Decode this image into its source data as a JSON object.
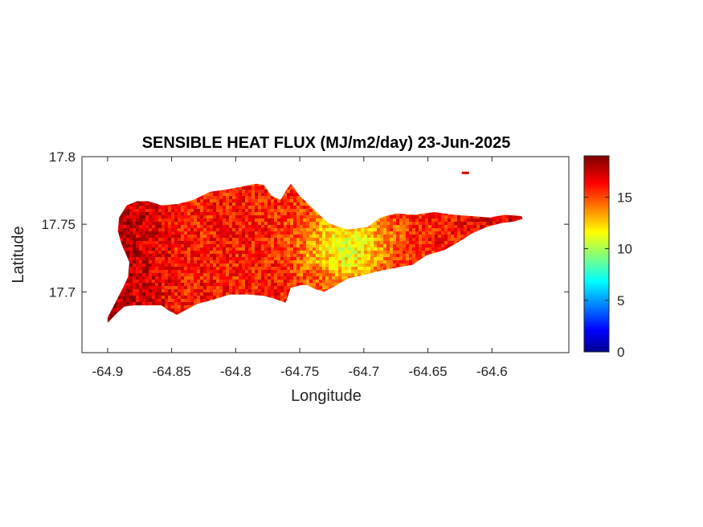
{
  "chart_data": {
    "type": "heatmap",
    "title": "SENSIBLE HEAT FLUX (MJ/m2/day) 23-Jun-2025",
    "xlabel": "Longitude",
    "ylabel": "Latitude",
    "xlim": [
      -64.92,
      -64.54
    ],
    "ylim": [
      17.655,
      17.8
    ],
    "x_ticks": [
      -64.9,
      -64.85,
      -64.8,
      -64.75,
      -64.7,
      -64.65,
      -64.6
    ],
    "x_tick_labels": [
      "-64.9",
      "-64.85",
      "-64.8",
      "-64.75",
      "-64.7",
      "-64.65",
      "-64.6"
    ],
    "y_ticks": [
      17.7,
      17.75,
      17.8
    ],
    "y_tick_labels": [
      "17.7",
      "17.75",
      "17.8"
    ],
    "grid": false,
    "colormap": "jet",
    "colorbar": {
      "position": "right",
      "range": [
        0,
        19
      ],
      "ticks": [
        0,
        5,
        10,
        15
      ],
      "tick_labels": [
        "0",
        "5",
        "10",
        "15"
      ]
    },
    "island_outline": [
      [
        -64.9,
        17.677
      ],
      [
        -64.893,
        17.684
      ],
      [
        -64.887,
        17.689
      ],
      [
        -64.88,
        17.69
      ],
      [
        -64.858,
        17.69
      ],
      [
        -64.852,
        17.686
      ],
      [
        -64.846,
        17.683
      ],
      [
        -64.84,
        17.686
      ],
      [
        -64.83,
        17.691
      ],
      [
        -64.818,
        17.694
      ],
      [
        -64.805,
        17.698
      ],
      [
        -64.79,
        17.698
      ],
      [
        -64.778,
        17.697
      ],
      [
        -64.77,
        17.695
      ],
      [
        -64.761,
        17.692
      ],
      [
        -64.757,
        17.703
      ],
      [
        -64.749,
        17.705
      ],
      [
        -64.744,
        17.705
      ],
      [
        -64.738,
        17.702
      ],
      [
        -64.731,
        17.7
      ],
      [
        -64.723,
        17.704
      ],
      [
        -64.712,
        17.71
      ],
      [
        -64.702,
        17.712
      ],
      [
        -64.69,
        17.715
      ],
      [
        -64.674,
        17.718
      ],
      [
        -64.662,
        17.72
      ],
      [
        -64.651,
        17.727
      ],
      [
        -64.637,
        17.731
      ],
      [
        -64.624,
        17.738
      ],
      [
        -64.616,
        17.743
      ],
      [
        -64.604,
        17.748
      ],
      [
        -64.592,
        17.751
      ],
      [
        -64.583,
        17.752
      ],
      [
        -64.576,
        17.754
      ],
      [
        -64.577,
        17.756
      ],
      [
        -64.59,
        17.757
      ],
      [
        -64.602,
        17.755
      ],
      [
        -64.616,
        17.756
      ],
      [
        -64.63,
        17.757
      ],
      [
        -64.645,
        17.759
      ],
      [
        -64.66,
        17.757
      ],
      [
        -64.675,
        17.758
      ],
      [
        -64.687,
        17.755
      ],
      [
        -64.697,
        17.748
      ],
      [
        -64.713,
        17.746
      ],
      [
        -64.728,
        17.751
      ],
      [
        -64.739,
        17.761
      ],
      [
        -64.75,
        17.771
      ],
      [
        -64.757,
        17.78
      ],
      [
        -64.76,
        17.776
      ],
      [
        -64.765,
        17.768
      ],
      [
        -64.772,
        17.771
      ],
      [
        -64.778,
        17.779
      ],
      [
        -64.784,
        17.78
      ],
      [
        -64.805,
        17.776
      ],
      [
        -64.82,
        17.774
      ],
      [
        -64.833,
        17.768
      ],
      [
        -64.845,
        17.765
      ],
      [
        -64.858,
        17.764
      ],
      [
        -64.868,
        17.767
      ],
      [
        -64.877,
        17.767
      ],
      [
        -64.885,
        17.764
      ],
      [
        -64.891,
        17.755
      ],
      [
        -64.892,
        17.745
      ],
      [
        -64.889,
        17.735
      ],
      [
        -64.883,
        17.722
      ],
      [
        -64.884,
        17.711
      ],
      [
        -64.888,
        17.703
      ],
      [
        -64.894,
        17.692
      ],
      [
        -64.9,
        17.681
      ]
    ],
    "islet": {
      "lon": -64.621,
      "lat": 17.788,
      "value": 17.5
    },
    "value_field": {
      "base": 16.2,
      "west_edge_peak": 18.5,
      "cool_center": {
        "lon": -64.715,
        "lat": 17.735,
        "value": 11.5
      },
      "min_value": 9.5
    }
  }
}
